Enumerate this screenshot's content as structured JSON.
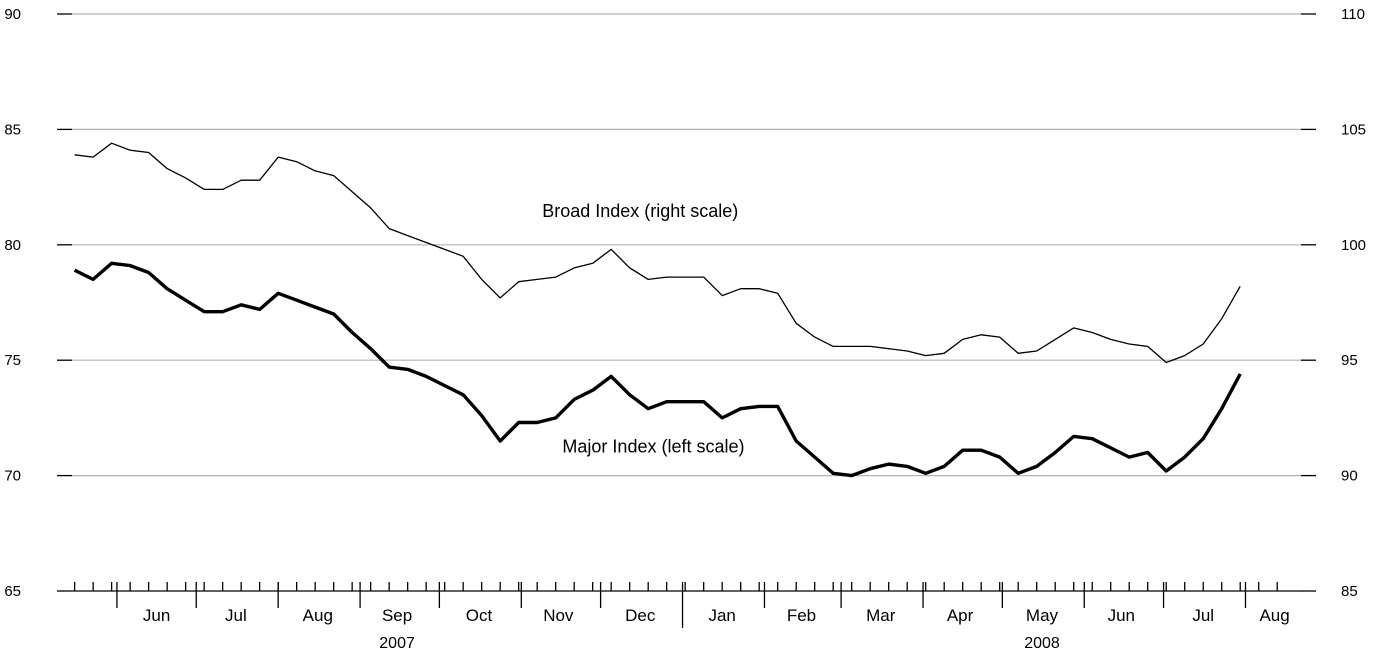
{
  "chart_data": {
    "type": "line",
    "title": "",
    "xlabel": "",
    "ylabel": "",
    "left_axis": {
      "ylim": [
        65,
        90
      ],
      "ticks": [
        65,
        70,
        75,
        80,
        85,
        90
      ]
    },
    "right_axis": {
      "ylim": [
        85,
        110
      ],
      "ticks": [
        85,
        90,
        95,
        100,
        105,
        110
      ]
    },
    "grid": true,
    "x_range": [
      "2007-05-15",
      "2008-08-22"
    ],
    "months": [
      {
        "label": "Jun",
        "date": "2007-06-16"
      },
      {
        "label": "Jul",
        "date": "2007-07-16"
      },
      {
        "label": "Aug",
        "date": "2007-08-16"
      },
      {
        "label": "Sep",
        "date": "2007-09-15"
      },
      {
        "label": "Oct",
        "date": "2007-10-16"
      },
      {
        "label": "Nov",
        "date": "2007-11-15"
      },
      {
        "label": "Dec",
        "date": "2007-12-16"
      },
      {
        "label": "Jan",
        "date": "2008-01-16"
      },
      {
        "label": "Feb",
        "date": "2008-02-15"
      },
      {
        "label": "Mar",
        "date": "2008-03-16"
      },
      {
        "label": "Apr",
        "date": "2008-04-15"
      },
      {
        "label": "May",
        "date": "2008-05-16"
      },
      {
        "label": "Jun",
        "date": "2008-06-15"
      },
      {
        "label": "Jul",
        "date": "2008-07-16"
      },
      {
        "label": "Aug",
        "date": "2008-08-12"
      }
    ],
    "month_boundaries": [
      "2007-06-01",
      "2007-07-01",
      "2007-08-01",
      "2007-09-01",
      "2007-10-01",
      "2007-11-01",
      "2007-12-01",
      "2008-01-01",
      "2008-02-01",
      "2008-03-01",
      "2008-04-01",
      "2008-05-01",
      "2008-06-01",
      "2008-07-01",
      "2008-08-01",
      "2008-09-01"
    ],
    "year_boundary": "2008-01-01",
    "years": [
      {
        "label": "2007",
        "date": "2007-09-15"
      },
      {
        "label": "2008",
        "date": "2008-05-16"
      }
    ],
    "x": [
      "2007-05-16",
      "2007-05-23",
      "2007-05-30",
      "2007-06-06",
      "2007-06-13",
      "2007-06-20",
      "2007-06-27",
      "2007-07-04",
      "2007-07-11",
      "2007-07-18",
      "2007-07-25",
      "2007-08-01",
      "2007-08-08",
      "2007-08-15",
      "2007-08-22",
      "2007-08-29",
      "2007-09-05",
      "2007-09-12",
      "2007-09-19",
      "2007-09-26",
      "2007-10-03",
      "2007-10-10",
      "2007-10-17",
      "2007-10-24",
      "2007-10-31",
      "2007-11-07",
      "2007-11-14",
      "2007-11-21",
      "2007-11-28",
      "2007-12-05",
      "2007-12-12",
      "2007-12-19",
      "2007-12-26",
      "2008-01-02",
      "2008-01-09",
      "2008-01-16",
      "2008-01-23",
      "2008-01-30",
      "2008-02-06",
      "2008-02-13",
      "2008-02-20",
      "2008-02-27",
      "2008-03-05",
      "2008-03-12",
      "2008-03-19",
      "2008-03-26",
      "2008-04-02",
      "2008-04-09",
      "2008-04-16",
      "2008-04-23",
      "2008-04-30",
      "2008-05-07",
      "2008-05-14",
      "2008-05-21",
      "2008-05-28",
      "2008-06-04",
      "2008-06-11",
      "2008-06-18",
      "2008-06-25",
      "2008-07-02",
      "2008-07-09",
      "2008-07-16",
      "2008-07-23",
      "2008-07-30",
      "2008-08-06",
      "2008-08-13"
    ],
    "series": [
      {
        "name": "Major Index (left scale)",
        "axis": "left",
        "style": "thick",
        "values": [
          78.9,
          78.5,
          79.2,
          79.1,
          78.8,
          78.1,
          77.6,
          77.1,
          77.1,
          77.4,
          77.2,
          77.9,
          77.6,
          77.3,
          77.0,
          76.2,
          75.5,
          74.7,
          74.6,
          74.3,
          73.9,
          73.5,
          72.6,
          71.5,
          72.3,
          72.3,
          72.5,
          73.3,
          73.7,
          74.3,
          73.5,
          72.9,
          73.2,
          73.2,
          73.2,
          72.5,
          72.9,
          73.0,
          73.0,
          71.5,
          70.8,
          70.1,
          70.0,
          70.3,
          70.5,
          70.4,
          70.1,
          70.4,
          71.1,
          71.1,
          70.8,
          70.1,
          70.4,
          71.0,
          71.7,
          71.6,
          71.2,
          70.8,
          71.0,
          70.2,
          70.8,
          71.6,
          72.9,
          74.4,
          74.4,
          74.4
        ]
      },
      {
        "name": "Broad Index (right scale)",
        "axis": "right",
        "style": "thin",
        "values": [
          103.9,
          103.8,
          104.4,
          104.1,
          104.0,
          103.3,
          102.9,
          102.4,
          102.4,
          102.8,
          102.8,
          103.8,
          103.6,
          103.2,
          103.0,
          102.3,
          101.6,
          100.7,
          100.4,
          100.1,
          99.8,
          99.5,
          98.5,
          97.7,
          98.4,
          98.5,
          98.6,
          99.0,
          99.2,
          99.8,
          99.0,
          98.5,
          98.6,
          98.6,
          98.6,
          97.8,
          98.1,
          98.1,
          97.9,
          96.6,
          96.0,
          95.6,
          95.6,
          95.6,
          95.5,
          95.4,
          95.2,
          95.3,
          95.9,
          96.1,
          96.0,
          95.3,
          95.4,
          95.9,
          96.4,
          96.2,
          95.9,
          95.7,
          95.6,
          94.9,
          95.2,
          95.7,
          96.8,
          98.2,
          98.2,
          98.2
        ]
      }
    ],
    "last_point_index": 63,
    "annotations": [
      {
        "text": "Broad Index (right scale)",
        "date": "2007-12-16",
        "value_right": 101.2
      },
      {
        "text": "Major Index (left scale)",
        "date": "2007-12-21",
        "value_left": 71.0
      }
    ]
  }
}
